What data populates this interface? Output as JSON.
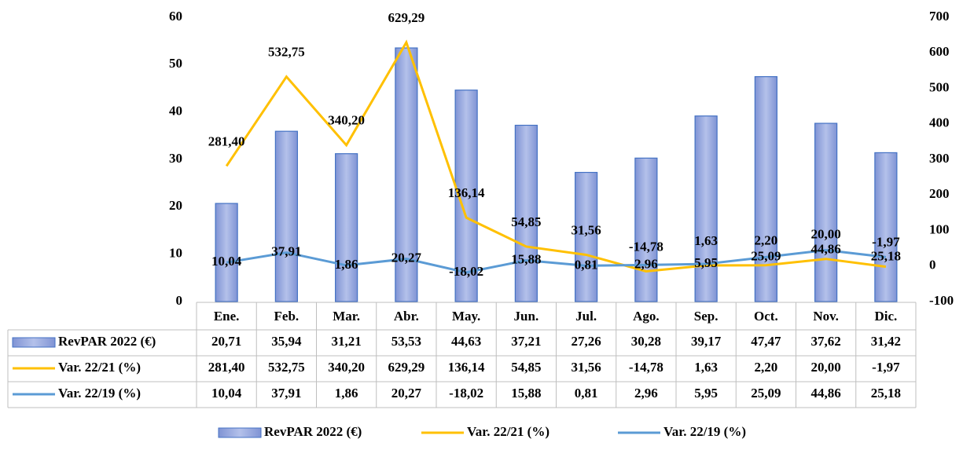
{
  "chart_data": {
    "type": "bar",
    "categories": [
      "Ene.",
      "Feb.",
      "Mar.",
      "Abr.",
      "May.",
      "Jun.",
      "Jul.",
      "Ago.",
      "Sep.",
      "Oct.",
      "Nov.",
      "Dic."
    ],
    "series": [
      {
        "name": "RevPAR 2022 (€)",
        "type": "bar",
        "color": "#8fa2dc",
        "values": [
          20.71,
          35.94,
          31.21,
          53.53,
          44.63,
          37.21,
          27.26,
          30.28,
          39.17,
          47.47,
          37.62,
          31.42
        ],
        "value_labels": [
          "20,71",
          "35,94",
          "31,21",
          "53,53",
          "44,63",
          "37,21",
          "27,26",
          "30,28",
          "39,17",
          "47,47",
          "37,62",
          "31,42"
        ]
      },
      {
        "name": "Var. 22/21 (%)",
        "type": "line",
        "axis": "y2",
        "color": "#ffc000",
        "values": [
          281.4,
          532.75,
          340.2,
          629.29,
          136.14,
          54.85,
          31.56,
          -14.78,
          1.63,
          2.2,
          20.0,
          -1.97
        ],
        "value_labels": [
          "281,40",
          "532,75",
          "340,20",
          "629,29",
          "136,14",
          "54,85",
          "31,56",
          "-14,78",
          "1,63",
          "2,20",
          "20,00",
          "-1,97"
        ]
      },
      {
        "name": "Var. 22/19 (%)",
        "type": "line",
        "axis": "y2",
        "color": "#5b9bd5",
        "values": [
          10.04,
          37.91,
          1.86,
          20.27,
          -18.02,
          15.88,
          0.81,
          2.96,
          5.95,
          25.09,
          44.86,
          25.18
        ],
        "value_labels": [
          "10,04",
          "37,91",
          "1,86",
          "20,27",
          "-18,02",
          "15,88",
          "0,81",
          "2,96",
          "5,95",
          "25,09",
          "44,86",
          "25,18"
        ]
      }
    ],
    "ylim": [
      0,
      60
    ],
    "yticks": [
      0,
      10,
      20,
      30,
      40,
      50,
      60
    ],
    "y2lim": [
      -100,
      700
    ],
    "y2ticks": [
      -100,
      0,
      100,
      200,
      300,
      400,
      500,
      600,
      700
    ],
    "grid": false,
    "legend": "bottom"
  }
}
